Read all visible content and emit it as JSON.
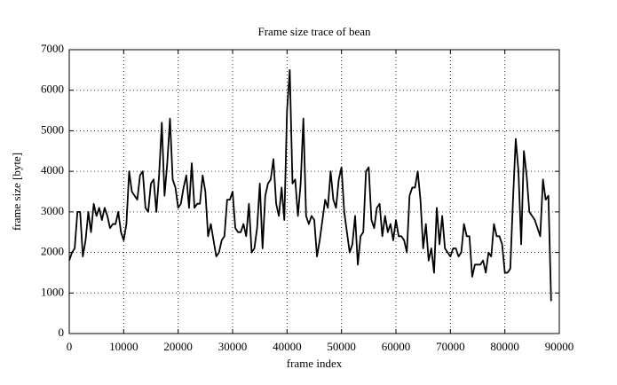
{
  "chart_data": {
    "type": "line",
    "title": "Frame size trace of bean",
    "xlabel": "frame index",
    "ylabel": "frame size [byte]",
    "xlim": [
      0,
      90000
    ],
    "ylim": [
      0,
      7000
    ],
    "xticks": [
      0,
      10000,
      20000,
      30000,
      40000,
      50000,
      60000,
      70000,
      80000,
      90000
    ],
    "yticks": [
      0,
      1000,
      2000,
      3000,
      4000,
      5000,
      6000,
      7000
    ],
    "grid": true,
    "x": [
      0,
      500,
      1000,
      1500,
      2000,
      2500,
      3000,
      3500,
      4000,
      4500,
      5000,
      5500,
      6000,
      6500,
      7000,
      7500,
      8000,
      8500,
      9000,
      9500,
      10000,
      10500,
      11000,
      11500,
      12000,
      12500,
      13000,
      13500,
      14000,
      14500,
      15000,
      15500,
      16000,
      16500,
      17000,
      17500,
      18000,
      18500,
      19000,
      19500,
      20000,
      20500,
      21000,
      21500,
      22000,
      22500,
      23000,
      23500,
      24000,
      24500,
      25000,
      25500,
      26000,
      26500,
      27000,
      27500,
      28000,
      28500,
      29000,
      29500,
      30000,
      30500,
      31000,
      31500,
      32000,
      32500,
      33000,
      33500,
      34000,
      34500,
      35000,
      35500,
      36000,
      36500,
      37000,
      37500,
      38000,
      38500,
      39000,
      39500,
      40000,
      40500,
      41000,
      41500,
      42000,
      42500,
      43000,
      43500,
      44000,
      44500,
      45000,
      45500,
      46000,
      46500,
      47000,
      47500,
      48000,
      48500,
      49000,
      49500,
      50000,
      50500,
      51000,
      51500,
      52000,
      52500,
      53000,
      53500,
      54000,
      54500,
      55000,
      55500,
      56000,
      56500,
      57000,
      57500,
      58000,
      58500,
      59000,
      59500,
      60000,
      60500,
      61000,
      61500,
      62000,
      62500,
      63000,
      63500,
      64000,
      64500,
      65000,
      65500,
      66000,
      66500,
      67000,
      67500,
      68000,
      68500,
      69000,
      69500,
      70000,
      70500,
      71000,
      71500,
      72000,
      72500,
      73000,
      73500,
      74000,
      74500,
      75000,
      75500,
      76000,
      76500,
      77000,
      77500,
      78000,
      78500,
      79000,
      79500,
      80000,
      80500,
      81000,
      81500,
      82000,
      82500,
      83000,
      83500,
      84000,
      84500,
      85000,
      85500,
      86000,
      86500,
      87000,
      87500,
      88000,
      88500
    ],
    "series": [
      {
        "name": "bean",
        "color": "#000000",
        "values": [
          1800,
          2000,
          2100,
          3000,
          3000,
          1900,
          2300,
          3000,
          2500,
          3200,
          2900,
          3100,
          2800,
          3100,
          2900,
          2600,
          2700,
          2700,
          3000,
          2500,
          2300,
          2700,
          4000,
          3500,
          3400,
          3300,
          3900,
          4000,
          3100,
          3000,
          3700,
          3800,
          3000,
          3900,
          5200,
          3400,
          4200,
          5300,
          3800,
          3600,
          3100,
          3200,
          3600,
          3900,
          3100,
          4200,
          3100,
          3200,
          3200,
          3900,
          3500,
          2400,
          2700,
          2300,
          1900,
          2000,
          2300,
          2400,
          3300,
          3300,
          3500,
          2600,
          2500,
          2500,
          2700,
          2400,
          3200,
          2000,
          2100,
          2600,
          3700,
          2100,
          3400,
          3700,
          3800,
          4300,
          3200,
          2900,
          3600,
          2800,
          5500,
          6500,
          3700,
          3800,
          2900,
          3700,
          5300,
          2900,
          2700,
          2900,
          2800,
          1900,
          2300,
          2800,
          3300,
          3100,
          4000,
          3300,
          3100,
          3800,
          4100,
          3000,
          2500,
          2000,
          2200,
          2900,
          1700,
          2400,
          2500,
          4000,
          4100,
          2800,
          2600,
          3100,
          3200,
          2400,
          2900,
          2500,
          2700,
          2300,
          2800,
          2400,
          2400,
          2300,
          2000,
          3400,
          3600,
          3600,
          4000,
          3300,
          2100,
          2700,
          1800,
          2100,
          1500,
          3100,
          2200,
          2900,
          2100,
          2000,
          1900,
          2100,
          2100,
          1900,
          2000,
          2700,
          2400,
          2400,
          1400,
          1700,
          1700,
          1700,
          1800,
          1500,
          2000,
          1900,
          2700,
          2400,
          2400,
          2200,
          1500,
          1500,
          1600,
          3300,
          4800,
          4000,
          2200,
          4500,
          3900,
          3000,
          2900,
          2800,
          2600,
          2400,
          3800,
          3300,
          3400,
          800
        ]
      }
    ]
  }
}
